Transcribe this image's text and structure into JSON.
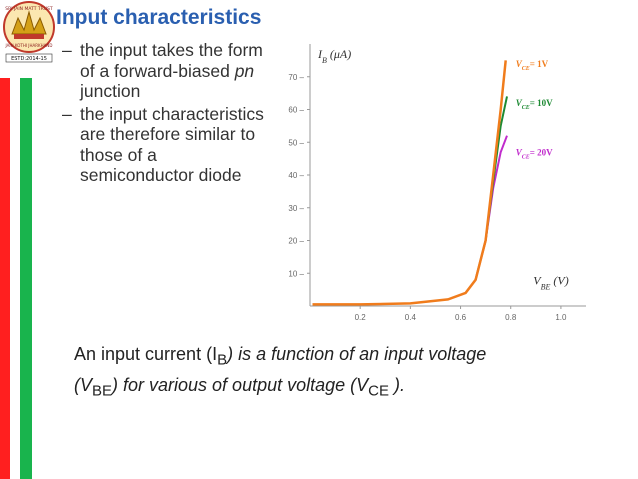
{
  "logo": {
    "top_text": "SRI JAIN MATT TRUST",
    "mid_text": "JAIN KOTHI JHARKHAND",
    "bottom_text": "ESTD:2014-15"
  },
  "title": "Input characteristics",
  "bullets": [
    {
      "dash": "–",
      "text": "the input takes the form of a forward-biased",
      "italic": "pn",
      "tail": "junction"
    },
    {
      "dash": "–",
      "text": "the input characteristics are therefore similar to those of a semiconductor diode"
    }
  ],
  "caption": {
    "p1": "An input current (I",
    "sub1": "B",
    "p2": ") is a function of an input voltage (V",
    "sub2": "BE",
    "p3": ") for various of output voltage (V",
    "sub3": "CE",
    "p4": " )."
  },
  "colors": {
    "title": "#2a5fb0",
    "bar_red": "#ff1f1f",
    "bar_green": "#19b44d",
    "series_1v": "#f07c1c",
    "series_10v": "#1d8a33",
    "series_20v": "#c02bcc"
  },
  "chart_data": {
    "type": "line",
    "ylabel": "I_B (μA)",
    "xlabel": "V_BE (V)",
    "xlim": [
      0,
      1.1
    ],
    "ylim": [
      0,
      80
    ],
    "xticks": [
      "0.2",
      "0.4",
      "0.6",
      "0.8",
      "1.0"
    ],
    "yticks": [
      "10",
      "20",
      "30",
      "40",
      "50",
      "60",
      "70"
    ],
    "grid": false,
    "series": [
      {
        "name": "V_CE = 1V",
        "color": "#f07c1c",
        "points": [
          [
            0.01,
            0.5
          ],
          [
            0.2,
            0.5
          ],
          [
            0.4,
            0.8
          ],
          [
            0.55,
            2
          ],
          [
            0.62,
            4
          ],
          [
            0.66,
            8
          ],
          [
            0.7,
            20
          ],
          [
            0.73,
            40
          ],
          [
            0.76,
            60
          ],
          [
            0.78,
            75
          ]
        ]
      },
      {
        "name": "V_CE = 10V",
        "color": "#1d8a33",
        "points": [
          [
            0.66,
            8
          ],
          [
            0.7,
            20
          ],
          [
            0.73,
            38
          ],
          [
            0.76,
            55
          ],
          [
            0.785,
            64
          ]
        ]
      },
      {
        "name": "V_CE = 20V",
        "color": "#c02bcc",
        "points": [
          [
            0.66,
            8
          ],
          [
            0.7,
            20
          ],
          [
            0.73,
            36
          ],
          [
            0.76,
            47
          ],
          [
            0.785,
            52
          ]
        ]
      }
    ],
    "legend_labels": [
      {
        "var": "V",
        "sub": "CE",
        "value": "= 1V"
      },
      {
        "var": "V",
        "sub": "CE",
        "value": "= 10V"
      },
      {
        "var": "V",
        "sub": "CE",
        "value": "= 20V"
      }
    ]
  }
}
